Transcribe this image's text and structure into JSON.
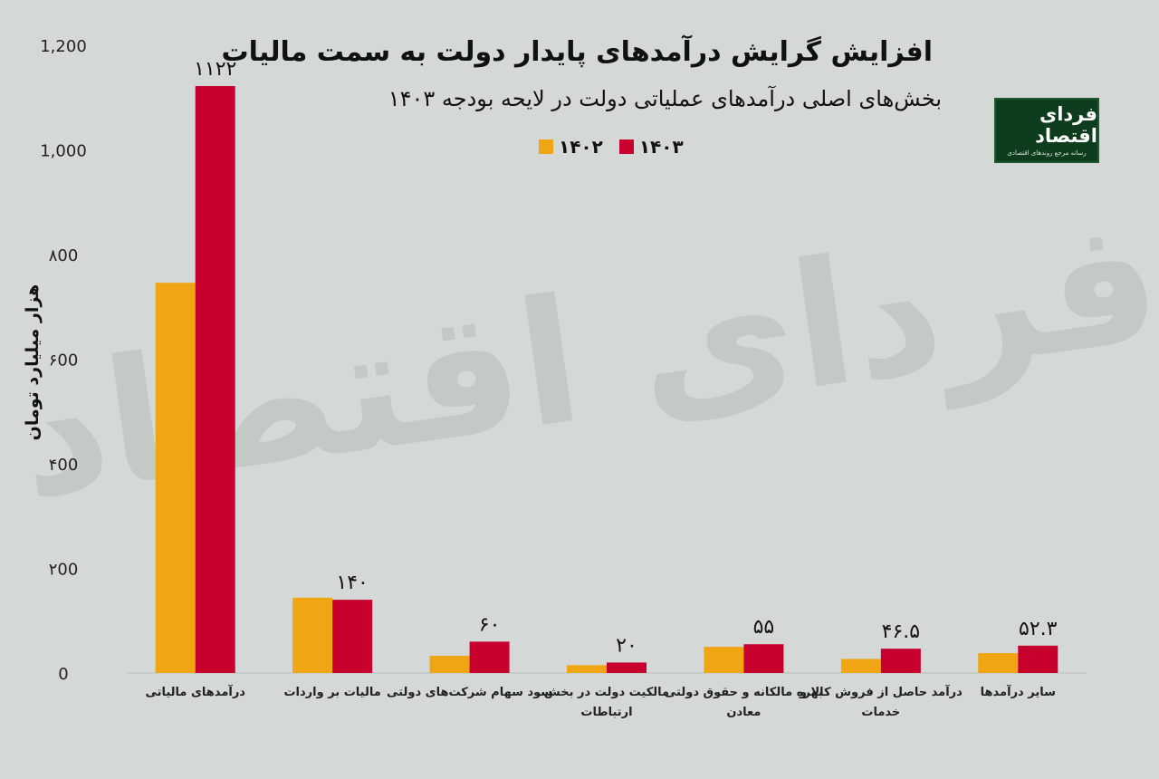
{
  "title": "افزایش گرایش درآمدهای پایدار دولت به سمت مالیات",
  "subtitle": "بخش‌های اصلی درآمدهای عملیاتی دولت در لایحه بودجه ۱۴۰۳",
  "logo": {
    "name": "فردای اقتصاد",
    "tagline": "رسانه مرجع روندهای اقتصادی"
  },
  "watermark": "فردای اقتصاد",
  "colors": {
    "series_1402": "#f0a612",
    "series_1403": "#c8002d",
    "background": "#d4d9d7"
  },
  "chart_data": {
    "type": "bar",
    "title": "افزایش گرایش درآمدهای پایدار دولت به سمت مالیات",
    "subtitle": "بخش‌های اصلی درآمدهای عملیاتی دولت در لایحه بودجه ۱۴۰۳",
    "ylabel": "هزار میلیارد تومان",
    "xlabel": "",
    "ylim": [
      0,
      1200
    ],
    "yticks": [
      0,
      200,
      400,
      600,
      800,
      1000,
      1200
    ],
    "ytick_labels": [
      "0",
      "۲00",
      "۴00",
      "۶00",
      "۸00",
      "1,000",
      "1,200"
    ],
    "legend_position": "top-center",
    "categories": [
      [
        "درآمدهای مالیاتی"
      ],
      [
        "مالیات بر واردات"
      ],
      [
        "سود سهام شرکت‌های دولتی"
      ],
      [
        "مالکیت دولت در بخش",
        "ارتباطات"
      ],
      [
        "بهره مالکانه و حقوق دولتی",
        "معادن"
      ],
      [
        "درآمد حاصل از فروش کالا و",
        "خدمات"
      ],
      [
        "سایر درآمدها"
      ]
    ],
    "series": [
      {
        "name": "۱۴۰۲",
        "values": [
          746,
          144,
          33,
          15,
          50,
          27,
          38
        ]
      },
      {
        "name": "۱۴۰۳",
        "values": [
          1122,
          140,
          60,
          20,
          55,
          46.5,
          52.3
        ]
      }
    ],
    "data_labels": [
      "۱۱۲۲",
      "۱۴۰",
      "۶۰",
      "۲۰",
      "۵۵",
      "۴۶.۵",
      "۵۲.۳"
    ]
  }
}
